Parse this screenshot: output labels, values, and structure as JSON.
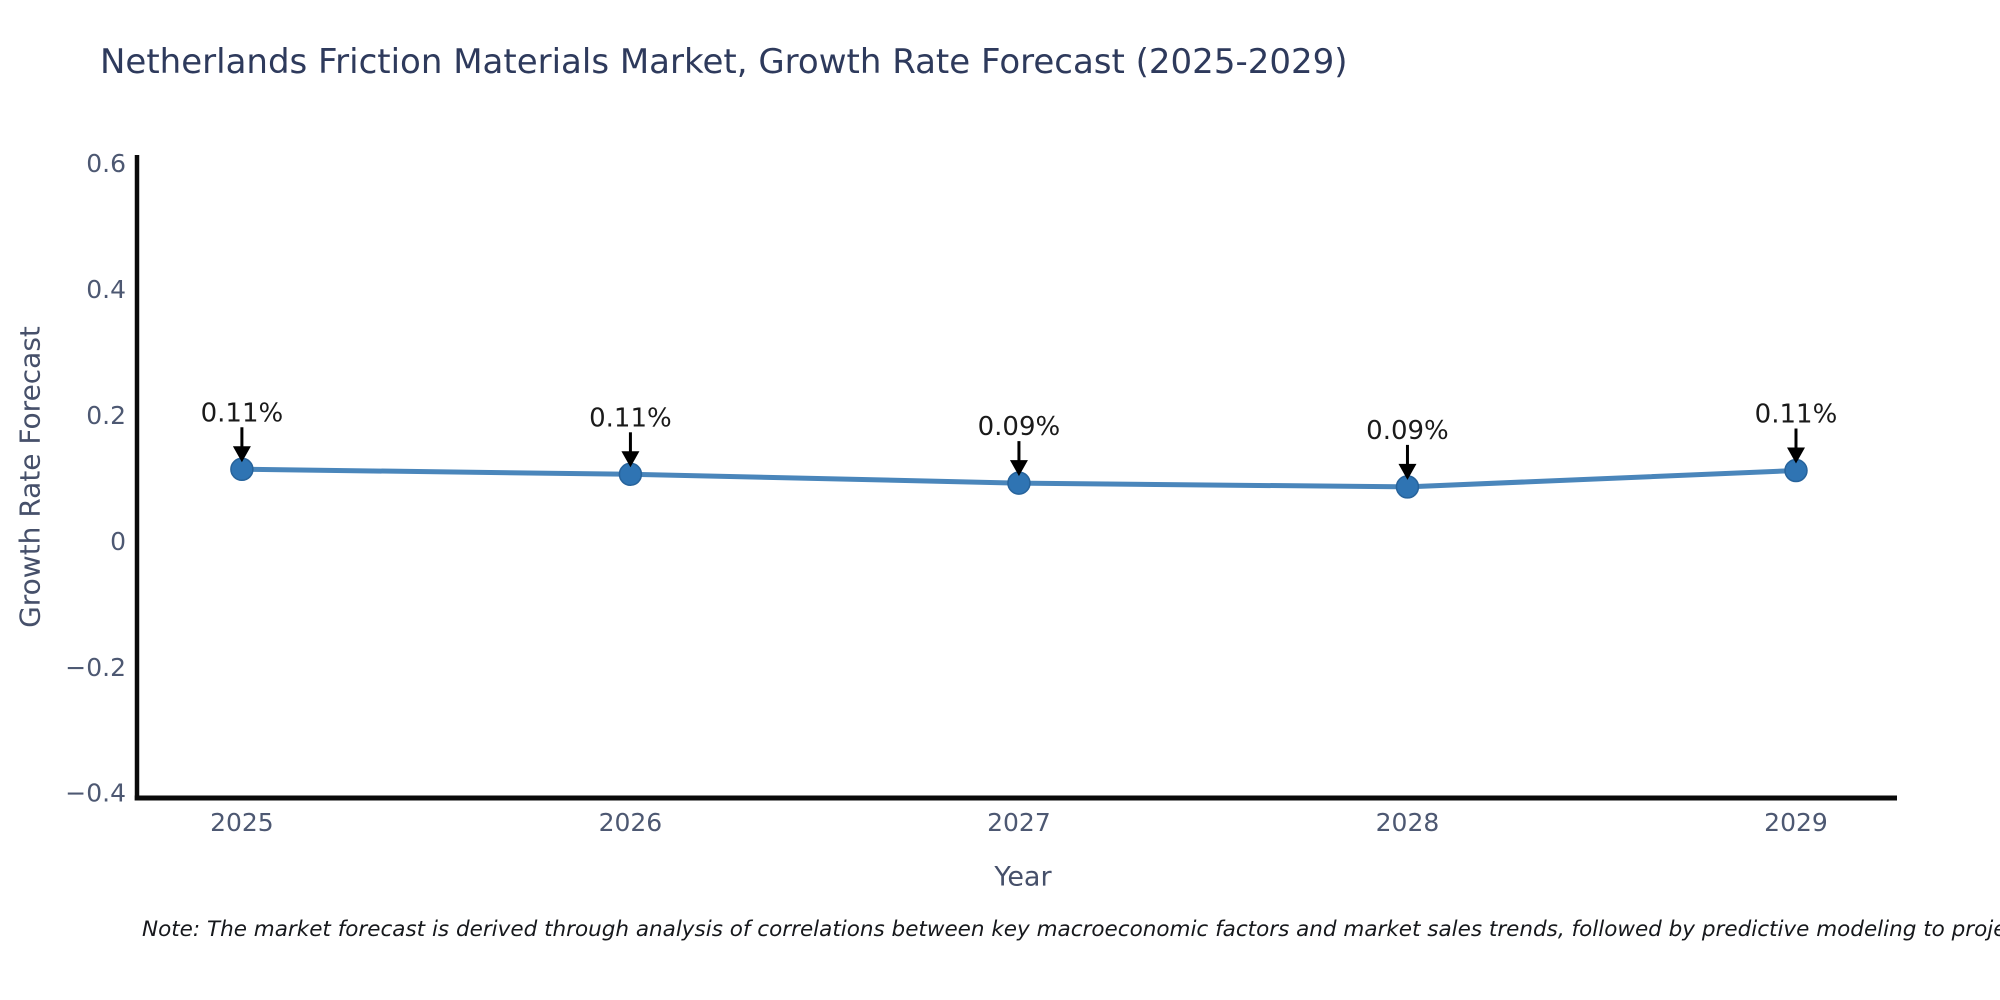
{
  "title": "Netherlands Friction Materials Market, Growth Rate Forecast (2025-2029)",
  "note": "Note: The market forecast is derived through analysis of correlations between key macroeconomic factors and market sales trends, followed by predictive modeling to project future sa",
  "chart_data": {
    "type": "line",
    "title": "Netherlands Friction Materials Market, Growth Rate Forecast (2025-2029)",
    "xlabel": "Year",
    "ylabel": "Growth Rate Forecast",
    "x": [
      2025,
      2026,
      2027,
      2028,
      2029
    ],
    "series": [
      {
        "name": "Growth Rate Forecast",
        "values": [
          0.114,
          0.106,
          0.092,
          0.086,
          0.112
        ],
        "point_labels": [
          "0.11%",
          "0.11%",
          "0.09%",
          "0.09%",
          "0.11%"
        ]
      }
    ],
    "x_ticks": [
      "2025",
      "2026",
      "2027",
      "2028",
      "2029"
    ],
    "x_tick_values": [
      2025,
      2026,
      2027,
      2028,
      2029
    ],
    "y_ticks": [
      -0.4,
      -0.2,
      0,
      0.2,
      0.4,
      0.6
    ],
    "xlim": [
      2024.73,
      2029.26
    ],
    "ylim": [
      -0.408,
      0.613
    ],
    "grid": false,
    "legend": false,
    "annotation_style": "value label with downward black arrow to marker",
    "colors": {
      "line": "#4a86bb",
      "marker": "#2f74b3",
      "marker_edge": "#27639b",
      "annotation_text": "#1a1a1a",
      "arrow": "#000000",
      "axis": "#0a0a0a",
      "tick_label": "#4d5872",
      "axis_label": "#46506a",
      "title": "#2e3a5c"
    }
  }
}
